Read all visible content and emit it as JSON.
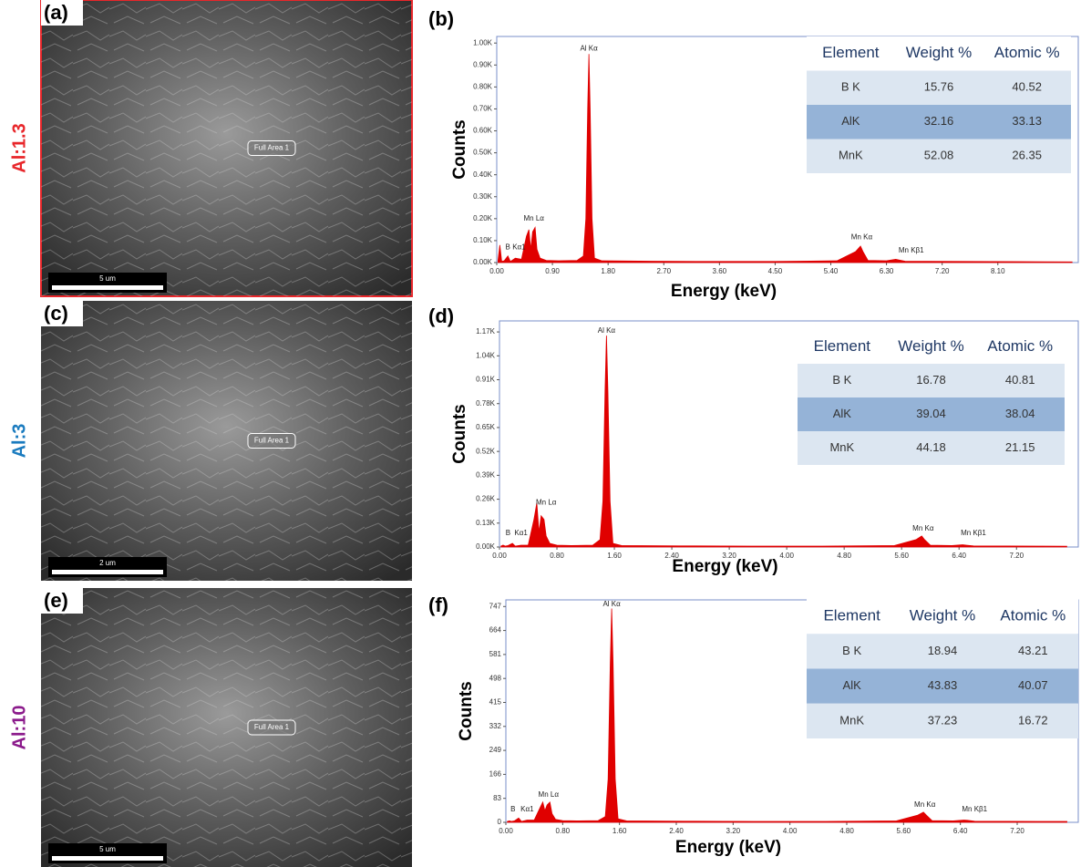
{
  "panels": [
    {
      "label": "(a)",
      "row_label": "Al:1.3",
      "row_color": "#e8262a",
      "area_label": "Full Area 1",
      "scale_bar": "5 um"
    },
    {
      "label": "(c)",
      "row_label": "Al:3",
      "row_color": "#1a7bbf",
      "area_label": "Full Area 1",
      "scale_bar": "2 um"
    },
    {
      "label": "(e)",
      "row_label": "Al:10",
      "row_color": "#8b1a8b",
      "area_label": "Full Area 1",
      "scale_bar": "5 um"
    }
  ],
  "chart_data": [
    {
      "type": "area",
      "panel_label": "(b)",
      "x_label": "Energy (keV)",
      "y_label": "Counts",
      "xlim": [
        0,
        9.4
      ],
      "ylim": [
        0,
        1030
      ],
      "xticks": [
        {
          "value": 0,
          "label": "0.00"
        },
        {
          "value": 0.9,
          "label": "0.90"
        },
        {
          "value": 1.8,
          "label": "1.80"
        },
        {
          "value": 2.7,
          "label": "2.70"
        },
        {
          "value": 3.6,
          "label": "3.60"
        },
        {
          "value": 4.5,
          "label": "4.50"
        },
        {
          "value": 5.4,
          "label": "5.40"
        },
        {
          "value": 6.3,
          "label": "6.30"
        },
        {
          "value": 7.2,
          "label": "7.20"
        },
        {
          "value": 8.1,
          "label": "8.10"
        }
      ],
      "yticks": [
        {
          "value": 0,
          "label": "0.00K"
        },
        {
          "value": 100,
          "label": "0.10K"
        },
        {
          "value": 200,
          "label": "0.20K"
        },
        {
          "value": 300,
          "label": "0.30K"
        },
        {
          "value": 400,
          "label": "0.40K"
        },
        {
          "value": 500,
          "label": "0.50K"
        },
        {
          "value": 600,
          "label": "0.60K"
        },
        {
          "value": 700,
          "label": "0.70K"
        },
        {
          "value": 800,
          "label": "0.80K"
        },
        {
          "value": 900,
          "label": "0.90K"
        },
        {
          "value": 1000,
          "label": "1.00K"
        }
      ],
      "series": [
        {
          "color": "#e00000",
          "x": [
            0.02,
            0.05,
            0.08,
            0.12,
            0.18,
            0.22,
            0.3,
            0.4,
            0.48,
            0.52,
            0.55,
            0.58,
            0.62,
            0.65,
            0.7,
            0.8,
            1.0,
            1.3,
            1.4,
            1.44,
            1.47,
            1.49,
            1.51,
            1.54,
            1.58,
            1.7,
            2.5,
            3.5,
            4.5,
            5.5,
            5.8,
            5.88,
            5.92,
            6.0,
            6.3,
            6.45,
            6.5,
            6.6,
            7.5,
            8.5,
            9.3
          ],
          "values": [
            10,
            80,
            5,
            8,
            30,
            5,
            20,
            15,
            120,
            150,
            60,
            140,
            160,
            60,
            20,
            10,
            8,
            10,
            30,
            200,
            700,
            950,
            700,
            200,
            20,
            8,
            6,
            5,
            5,
            8,
            50,
            75,
            50,
            10,
            8,
            15,
            12,
            6,
            5,
            4,
            3
          ]
        }
      ],
      "annotations": [
        {
          "text": "Al Kα",
          "x": 1.49,
          "y": 975
        },
        {
          "text": "B",
          "x": 0.18,
          "y": 70
        },
        {
          "text": "Kα1",
          "x": 0.36,
          "y": 70
        },
        {
          "text": "Mn Lα",
          "x": 0.6,
          "y": 200
        },
        {
          "text": "Mn Kα",
          "x": 5.9,
          "y": 115
        },
        {
          "text": "Mn Kβ1",
          "x": 6.7,
          "y": 55
        }
      ],
      "table": {
        "header": [
          "Element",
          "Weight %",
          "Atomic %"
        ],
        "rows": [
          [
            "B K",
            15.76,
            40.52
          ],
          [
            "AlK",
            32.16,
            33.13
          ],
          [
            "MnK",
            52.08,
            26.35
          ]
        ]
      }
    },
    {
      "type": "area",
      "panel_label": "(d)",
      "x_label": "Energy (keV)",
      "y_label": "Counts",
      "xlim": [
        0,
        8.06
      ],
      "ylim": [
        0,
        1230
      ],
      "xticks": [
        {
          "value": 0,
          "label": "0.00"
        },
        {
          "value": 0.8,
          "label": "0.80"
        },
        {
          "value": 1.6,
          "label": "1.60"
        },
        {
          "value": 2.4,
          "label": "2.40"
        },
        {
          "value": 3.2,
          "label": "3.20"
        },
        {
          "value": 4.0,
          "label": "4.00"
        },
        {
          "value": 4.8,
          "label": "4.80"
        },
        {
          "value": 5.6,
          "label": "5.60"
        },
        {
          "value": 6.4,
          "label": "6.40"
        },
        {
          "value": 7.2,
          "label": "7.20"
        }
      ],
      "yticks": [
        {
          "value": 0,
          "label": "0.00K"
        },
        {
          "value": 130,
          "label": "0.13K"
        },
        {
          "value": 260,
          "label": "0.26K"
        },
        {
          "value": 390,
          "label": "0.39K"
        },
        {
          "value": 520,
          "label": "0.52K"
        },
        {
          "value": 650,
          "label": "0.65K"
        },
        {
          "value": 780,
          "label": "0.78K"
        },
        {
          "value": 910,
          "label": "0.91K"
        },
        {
          "value": 1040,
          "label": "1.04K"
        },
        {
          "value": 1170,
          "label": "1.17K"
        }
      ],
      "series": [
        {
          "color": "#e00000",
          "x": [
            0.02,
            0.05,
            0.08,
            0.12,
            0.18,
            0.22,
            0.3,
            0.4,
            0.48,
            0.52,
            0.55,
            0.58,
            0.62,
            0.65,
            0.7,
            0.8,
            1.0,
            1.3,
            1.4,
            1.44,
            1.47,
            1.49,
            1.51,
            1.54,
            1.58,
            1.7,
            2.5,
            3.5,
            4.5,
            5.5,
            5.8,
            5.88,
            5.92,
            6.0,
            6.3,
            6.45,
            6.5,
            6.6,
            7.5,
            7.9
          ],
          "values": [
            5,
            10,
            5,
            8,
            20,
            5,
            10,
            10,
            150,
            240,
            80,
            170,
            150,
            60,
            20,
            10,
            8,
            10,
            40,
            250,
            850,
            1150,
            850,
            250,
            20,
            8,
            6,
            5,
            5,
            8,
            40,
            60,
            40,
            10,
            8,
            12,
            10,
            6,
            5,
            4
          ]
        }
      ],
      "annotations": [
        {
          "text": "Al Kα",
          "x": 1.49,
          "y": 1175
        },
        {
          "text": "B",
          "x": 0.12,
          "y": 75
        },
        {
          "text": "Kα1",
          "x": 0.3,
          "y": 75
        },
        {
          "text": "Mn Lα",
          "x": 0.65,
          "y": 240
        },
        {
          "text": "Mn Kα",
          "x": 5.9,
          "y": 100
        },
        {
          "text": "Mn Kβ1",
          "x": 6.6,
          "y": 75
        }
      ],
      "table": {
        "header": [
          "Element",
          "Weight %",
          "Atomic %"
        ],
        "rows": [
          [
            "B K",
            16.78,
            40.81
          ],
          [
            "AlK",
            39.04,
            38.04
          ],
          [
            "MnK",
            44.18,
            21.15
          ]
        ]
      }
    },
    {
      "type": "area",
      "panel_label": "(f)",
      "x_label": "Energy (keV)",
      "y_label": "Counts",
      "xlim": [
        0,
        8.06
      ],
      "ylim": [
        0,
        770
      ],
      "xticks": [
        {
          "value": 0,
          "label": "0.00"
        },
        {
          "value": 0.8,
          "label": "0.80"
        },
        {
          "value": 1.6,
          "label": "1.60"
        },
        {
          "value": 2.4,
          "label": "2.40"
        },
        {
          "value": 3.2,
          "label": "3.20"
        },
        {
          "value": 4.0,
          "label": "4.00"
        },
        {
          "value": 4.8,
          "label": "4.80"
        },
        {
          "value": 5.6,
          "label": "5.60"
        },
        {
          "value": 6.4,
          "label": "6.40"
        },
        {
          "value": 7.2,
          "label": "7.20"
        }
      ],
      "yticks": [
        0,
        83,
        166,
        249,
        332,
        415,
        498,
        581,
        664,
        747
      ],
      "series": [
        {
          "color": "#e00000",
          "x": [
            0.02,
            0.05,
            0.08,
            0.12,
            0.18,
            0.22,
            0.3,
            0.4,
            0.48,
            0.52,
            0.55,
            0.58,
            0.62,
            0.65,
            0.7,
            0.8,
            1.0,
            1.3,
            1.4,
            1.44,
            1.47,
            1.49,
            1.51,
            1.54,
            1.58,
            1.7,
            2.5,
            3.5,
            4.5,
            5.5,
            5.8,
            5.88,
            5.92,
            6.0,
            6.3,
            6.45,
            6.5,
            6.6,
            7.5,
            7.9
          ],
          "values": [
            3,
            5,
            3,
            5,
            15,
            3,
            8,
            8,
            50,
            70,
            40,
            60,
            70,
            30,
            10,
            6,
            5,
            6,
            20,
            150,
            550,
            740,
            550,
            150,
            12,
            5,
            4,
            3,
            3,
            5,
            25,
            35,
            25,
            6,
            5,
            8,
            7,
            4,
            3,
            3
          ]
        }
      ],
      "annotations": [
        {
          "text": "Al Kα",
          "x": 1.49,
          "y": 755
        },
        {
          "text": "B",
          "x": 0.1,
          "y": 45
        },
        {
          "text": "Kα1",
          "x": 0.3,
          "y": 45
        },
        {
          "text": "Mn Lα",
          "x": 0.6,
          "y": 95
        },
        {
          "text": "Mn Kα",
          "x": 5.9,
          "y": 60
        },
        {
          "text": "Mn Kβ1",
          "x": 6.6,
          "y": 45
        }
      ],
      "table": {
        "header": [
          "Element",
          "Weight %",
          "Atomic %"
        ],
        "rows": [
          [
            "B K",
            18.94,
            43.21
          ],
          [
            "AlK",
            43.83,
            40.07
          ],
          [
            "MnK",
            37.23,
            16.72
          ]
        ]
      }
    }
  ]
}
